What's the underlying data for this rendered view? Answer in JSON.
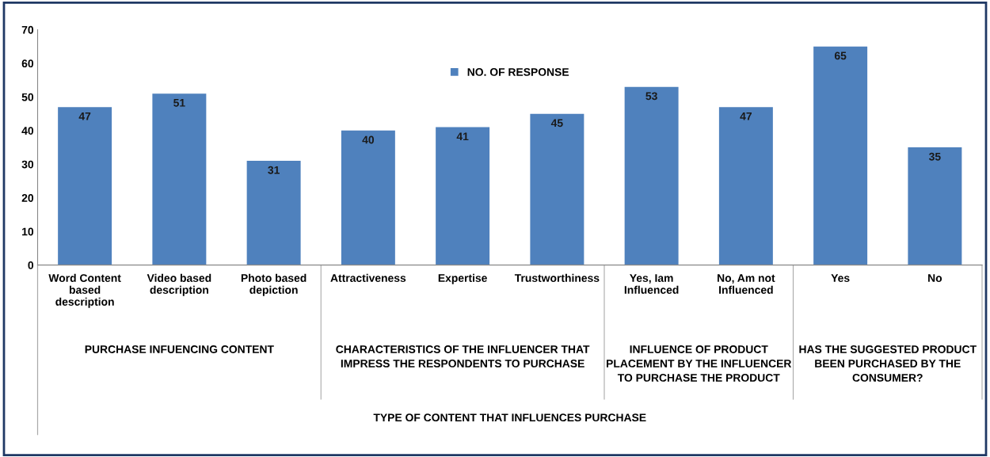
{
  "chart_data": {
    "type": "bar",
    "categories": [
      "Word Content\nbased\ndescription",
      "Video based\ndescription",
      "Photo based\ndepiction",
      "Attractiveness",
      "Expertise",
      "Trustworthiness",
      "Yes, Iam\nInfluenced",
      "No, Am not\nInfluenced",
      "Yes",
      "No"
    ],
    "series": [
      {
        "name": "NO. OF RESPONSE",
        "color": "#4f81bd",
        "values": [
          47,
          51,
          31,
          40,
          41,
          45,
          53,
          47,
          65,
          35
        ]
      }
    ],
    "ylim": [
      0,
      70
    ],
    "yticks": [
      0,
      10,
      20,
      30,
      40,
      50,
      60,
      70
    ],
    "annotations": [
      "PURCHASE INFUENCING CONTENT",
      "CHARACTERISTICS OF THE INFLUENCER THAT\nIMPRESS THE RESPONDENTS TO PURCHASE",
      "INFLUENCE OF PRODUCT\nPLACEMENT BY THE INFLUENCER\nTO PURCHASE THE PRODUCT",
      "HAS THE SUGGESTED PRODUCT\nBEEN PURCHASED BY THE\nCONSUMER?",
      "TYPE OF CONTENT THAT INFLUENCES PURCHASE"
    ],
    "data_labels": true,
    "grid": false,
    "legend": "top"
  }
}
